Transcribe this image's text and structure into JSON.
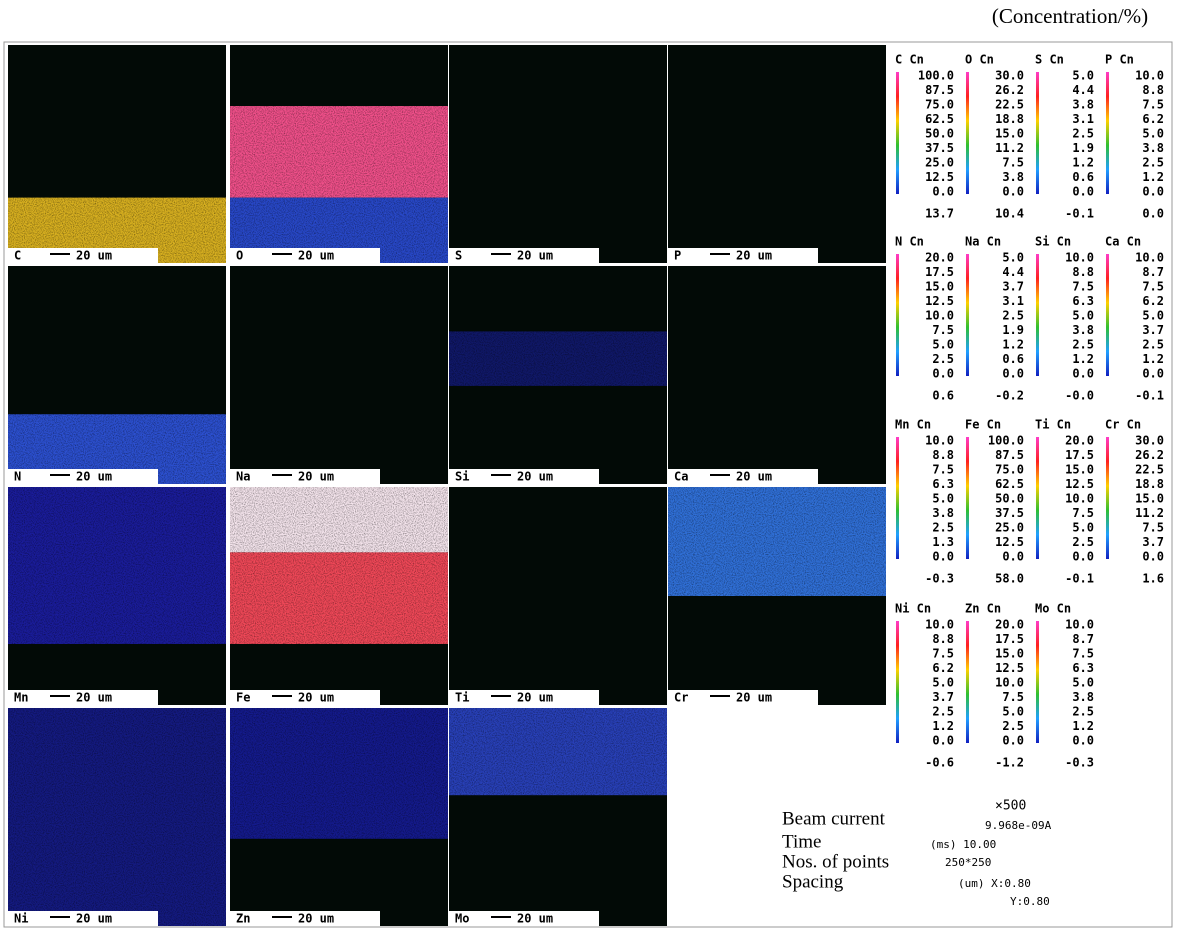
{
  "header": {
    "title": "(Concentration/%)"
  },
  "maps": [
    {
      "element": "C",
      "scale": "20 um"
    },
    {
      "element": "O",
      "scale": "20 um"
    },
    {
      "element": "S",
      "scale": "20 um"
    },
    {
      "element": "P",
      "scale": "20 um"
    },
    {
      "element": "N",
      "scale": "20 um"
    },
    {
      "element": "Na",
      "scale": "20 um"
    },
    {
      "element": "Si",
      "scale": "20 um"
    },
    {
      "element": "Ca",
      "scale": "20 um"
    },
    {
      "element": "Mn",
      "scale": "20 um"
    },
    {
      "element": "Fe",
      "scale": "20 um"
    },
    {
      "element": "Ti",
      "scale": "20 um"
    },
    {
      "element": "Cr",
      "scale": "20 um"
    },
    {
      "element": "Ni",
      "scale": "20 um"
    },
    {
      "element": "Zn",
      "scale": "20 um"
    },
    {
      "element": "Mo",
      "scale": "20 um"
    }
  ],
  "scales": [
    {
      "label": "C Cn",
      "ticks": [
        "100.0",
        "87.5",
        "75.0",
        "62.5",
        "50.0",
        "37.5",
        "25.0",
        "12.5",
        "0.0"
      ],
      "average": "13.7"
    },
    {
      "label": "O Cn",
      "ticks": [
        "30.0",
        "26.2",
        "22.5",
        "18.8",
        "15.0",
        "11.2",
        "7.5",
        "3.8",
        "0.0"
      ],
      "average": "10.4"
    },
    {
      "label": "S Cn",
      "ticks": [
        "5.0",
        "4.4",
        "3.8",
        "3.1",
        "2.5",
        "1.9",
        "1.2",
        "0.6",
        "0.0"
      ],
      "average": "-0.1"
    },
    {
      "label": "P Cn",
      "ticks": [
        "10.0",
        "8.8",
        "7.5",
        "6.2",
        "5.0",
        "3.8",
        "2.5",
        "1.2",
        "0.0"
      ],
      "average": "0.0"
    },
    {
      "label": "N Cn",
      "ticks": [
        "20.0",
        "17.5",
        "15.0",
        "12.5",
        "10.0",
        "7.5",
        "5.0",
        "2.5",
        "0.0"
      ],
      "average": "0.6"
    },
    {
      "label": "Na Cn",
      "ticks": [
        "5.0",
        "4.4",
        "3.7",
        "3.1",
        "2.5",
        "1.9",
        "1.2",
        "0.6",
        "0.0"
      ],
      "average": "-0.2"
    },
    {
      "label": "Si Cn",
      "ticks": [
        "10.0",
        "8.8",
        "7.5",
        "6.3",
        "5.0",
        "3.8",
        "2.5",
        "1.2",
        "0.0"
      ],
      "average": "-0.0"
    },
    {
      "label": "Ca Cn",
      "ticks": [
        "10.0",
        "8.7",
        "7.5",
        "6.2",
        "5.0",
        "3.7",
        "2.5",
        "1.2",
        "0.0"
      ],
      "average": "-0.1"
    },
    {
      "label": "Mn Cn",
      "ticks": [
        "10.0",
        "8.8",
        "7.5",
        "6.3",
        "5.0",
        "3.8",
        "2.5",
        "1.3",
        "0.0"
      ],
      "average": "-0.3"
    },
    {
      "label": "Fe Cn",
      "ticks": [
        "100.0",
        "87.5",
        "75.0",
        "62.5",
        "50.0",
        "37.5",
        "25.0",
        "12.5",
        "0.0"
      ],
      "average": "58.0"
    },
    {
      "label": "Ti Cn",
      "ticks": [
        "20.0",
        "17.5",
        "15.0",
        "12.5",
        "10.0",
        "7.5",
        "5.0",
        "2.5",
        "0.0"
      ],
      "average": "-0.1"
    },
    {
      "label": "Cr Cn",
      "ticks": [
        "30.0",
        "26.2",
        "22.5",
        "18.8",
        "15.0",
        "11.2",
        "7.5",
        "3.7",
        "0.0"
      ],
      "average": "1.6"
    },
    {
      "label": "Ni Cn",
      "ticks": [
        "10.0",
        "8.8",
        "7.5",
        "6.2",
        "5.0",
        "3.7",
        "2.5",
        "1.2",
        "0.0"
      ],
      "average": "-0.6"
    },
    {
      "label": "Zn Cn",
      "ticks": [
        "20.0",
        "17.5",
        "15.0",
        "12.5",
        "10.0",
        "7.5",
        "5.0",
        "2.5",
        "0.0"
      ],
      "average": "-1.2"
    },
    {
      "label": "Mo Cn",
      "ticks": [
        "10.0",
        "8.7",
        "7.5",
        "6.3",
        "5.0",
        "3.8",
        "2.5",
        "1.2",
        "0.0"
      ],
      "average": "-0.3"
    }
  ],
  "info": {
    "beam_label": "Beam current",
    "magnification": "×500",
    "beam_value": "9.968e-09A",
    "time_label": "Time",
    "time_value": "(ms) 10.00",
    "points_label": "Nos. of points",
    "points_value": "250*250",
    "spacing_label": "Spacing",
    "spacing_x": "(um) X:0.80",
    "spacing_y": "Y:0.80"
  }
}
